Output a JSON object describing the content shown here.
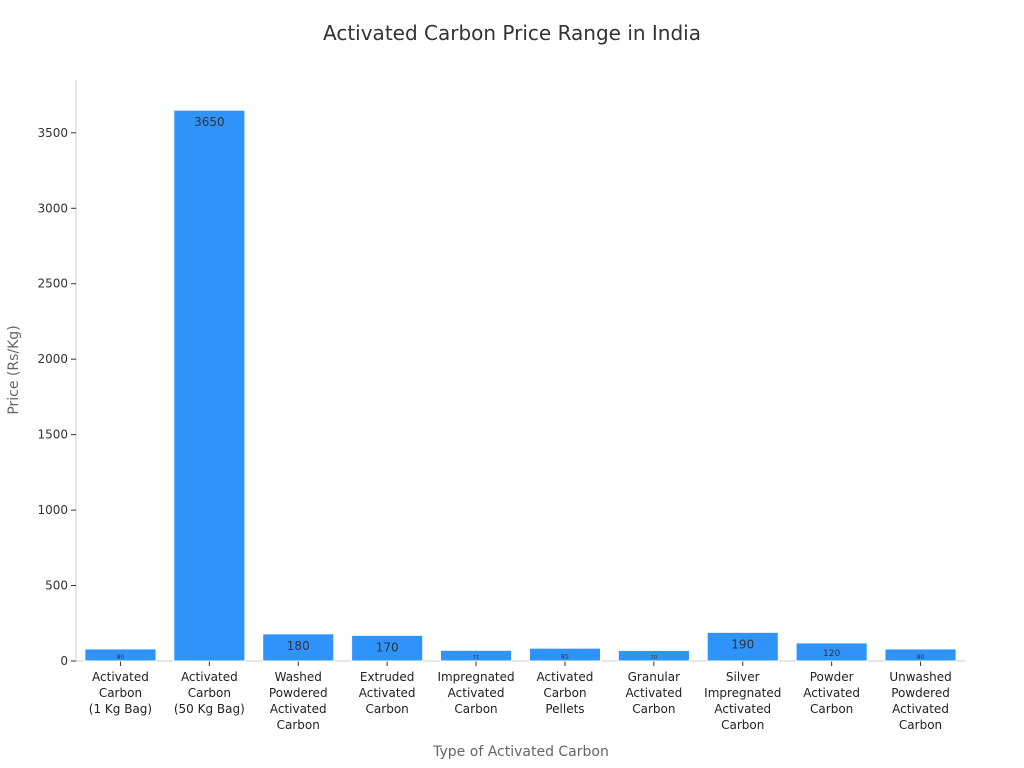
{
  "chart_data": {
    "type": "bar",
    "title": "Activated Carbon Price Range in India",
    "xlabel": "Type of Activated Carbon",
    "ylabel": "Price (Rs/Kg)",
    "ylim": [
      0,
      3850
    ],
    "yticks": [
      0,
      500,
      1000,
      1500,
      2000,
      2500,
      3000,
      3500
    ],
    "grid": false,
    "bar_color": "#2e93fa",
    "categories": [
      [
        "Activated",
        "Carbon",
        "(1 Kg Bag)"
      ],
      [
        "Activated",
        "Carbon",
        "(50 Kg Bag)"
      ],
      [
        "Washed",
        "Powdered",
        "Activated",
        "Carbon"
      ],
      [
        "Extruded",
        "Activated",
        "Carbon"
      ],
      [
        "Impregnated",
        "Activated",
        "Carbon"
      ],
      [
        "Activated",
        "Carbon",
        "Pellets"
      ],
      [
        "Granular",
        "Activated",
        "Carbon"
      ],
      [
        "Silver",
        "Impregnated",
        "Activated",
        "Carbon"
      ],
      [
        "Powder",
        "Activated",
        "Carbon"
      ],
      [
        "Unwashed",
        "Powdered",
        "Activated",
        "Carbon"
      ]
    ],
    "values": [
      80,
      3650,
      180,
      170,
      71,
      85,
      70,
      190,
      120,
      80
    ],
    "data_labels": [
      "80",
      "3650",
      "180",
      "170",
      "71",
      "85",
      "70",
      "190",
      "120",
      "80"
    ]
  }
}
